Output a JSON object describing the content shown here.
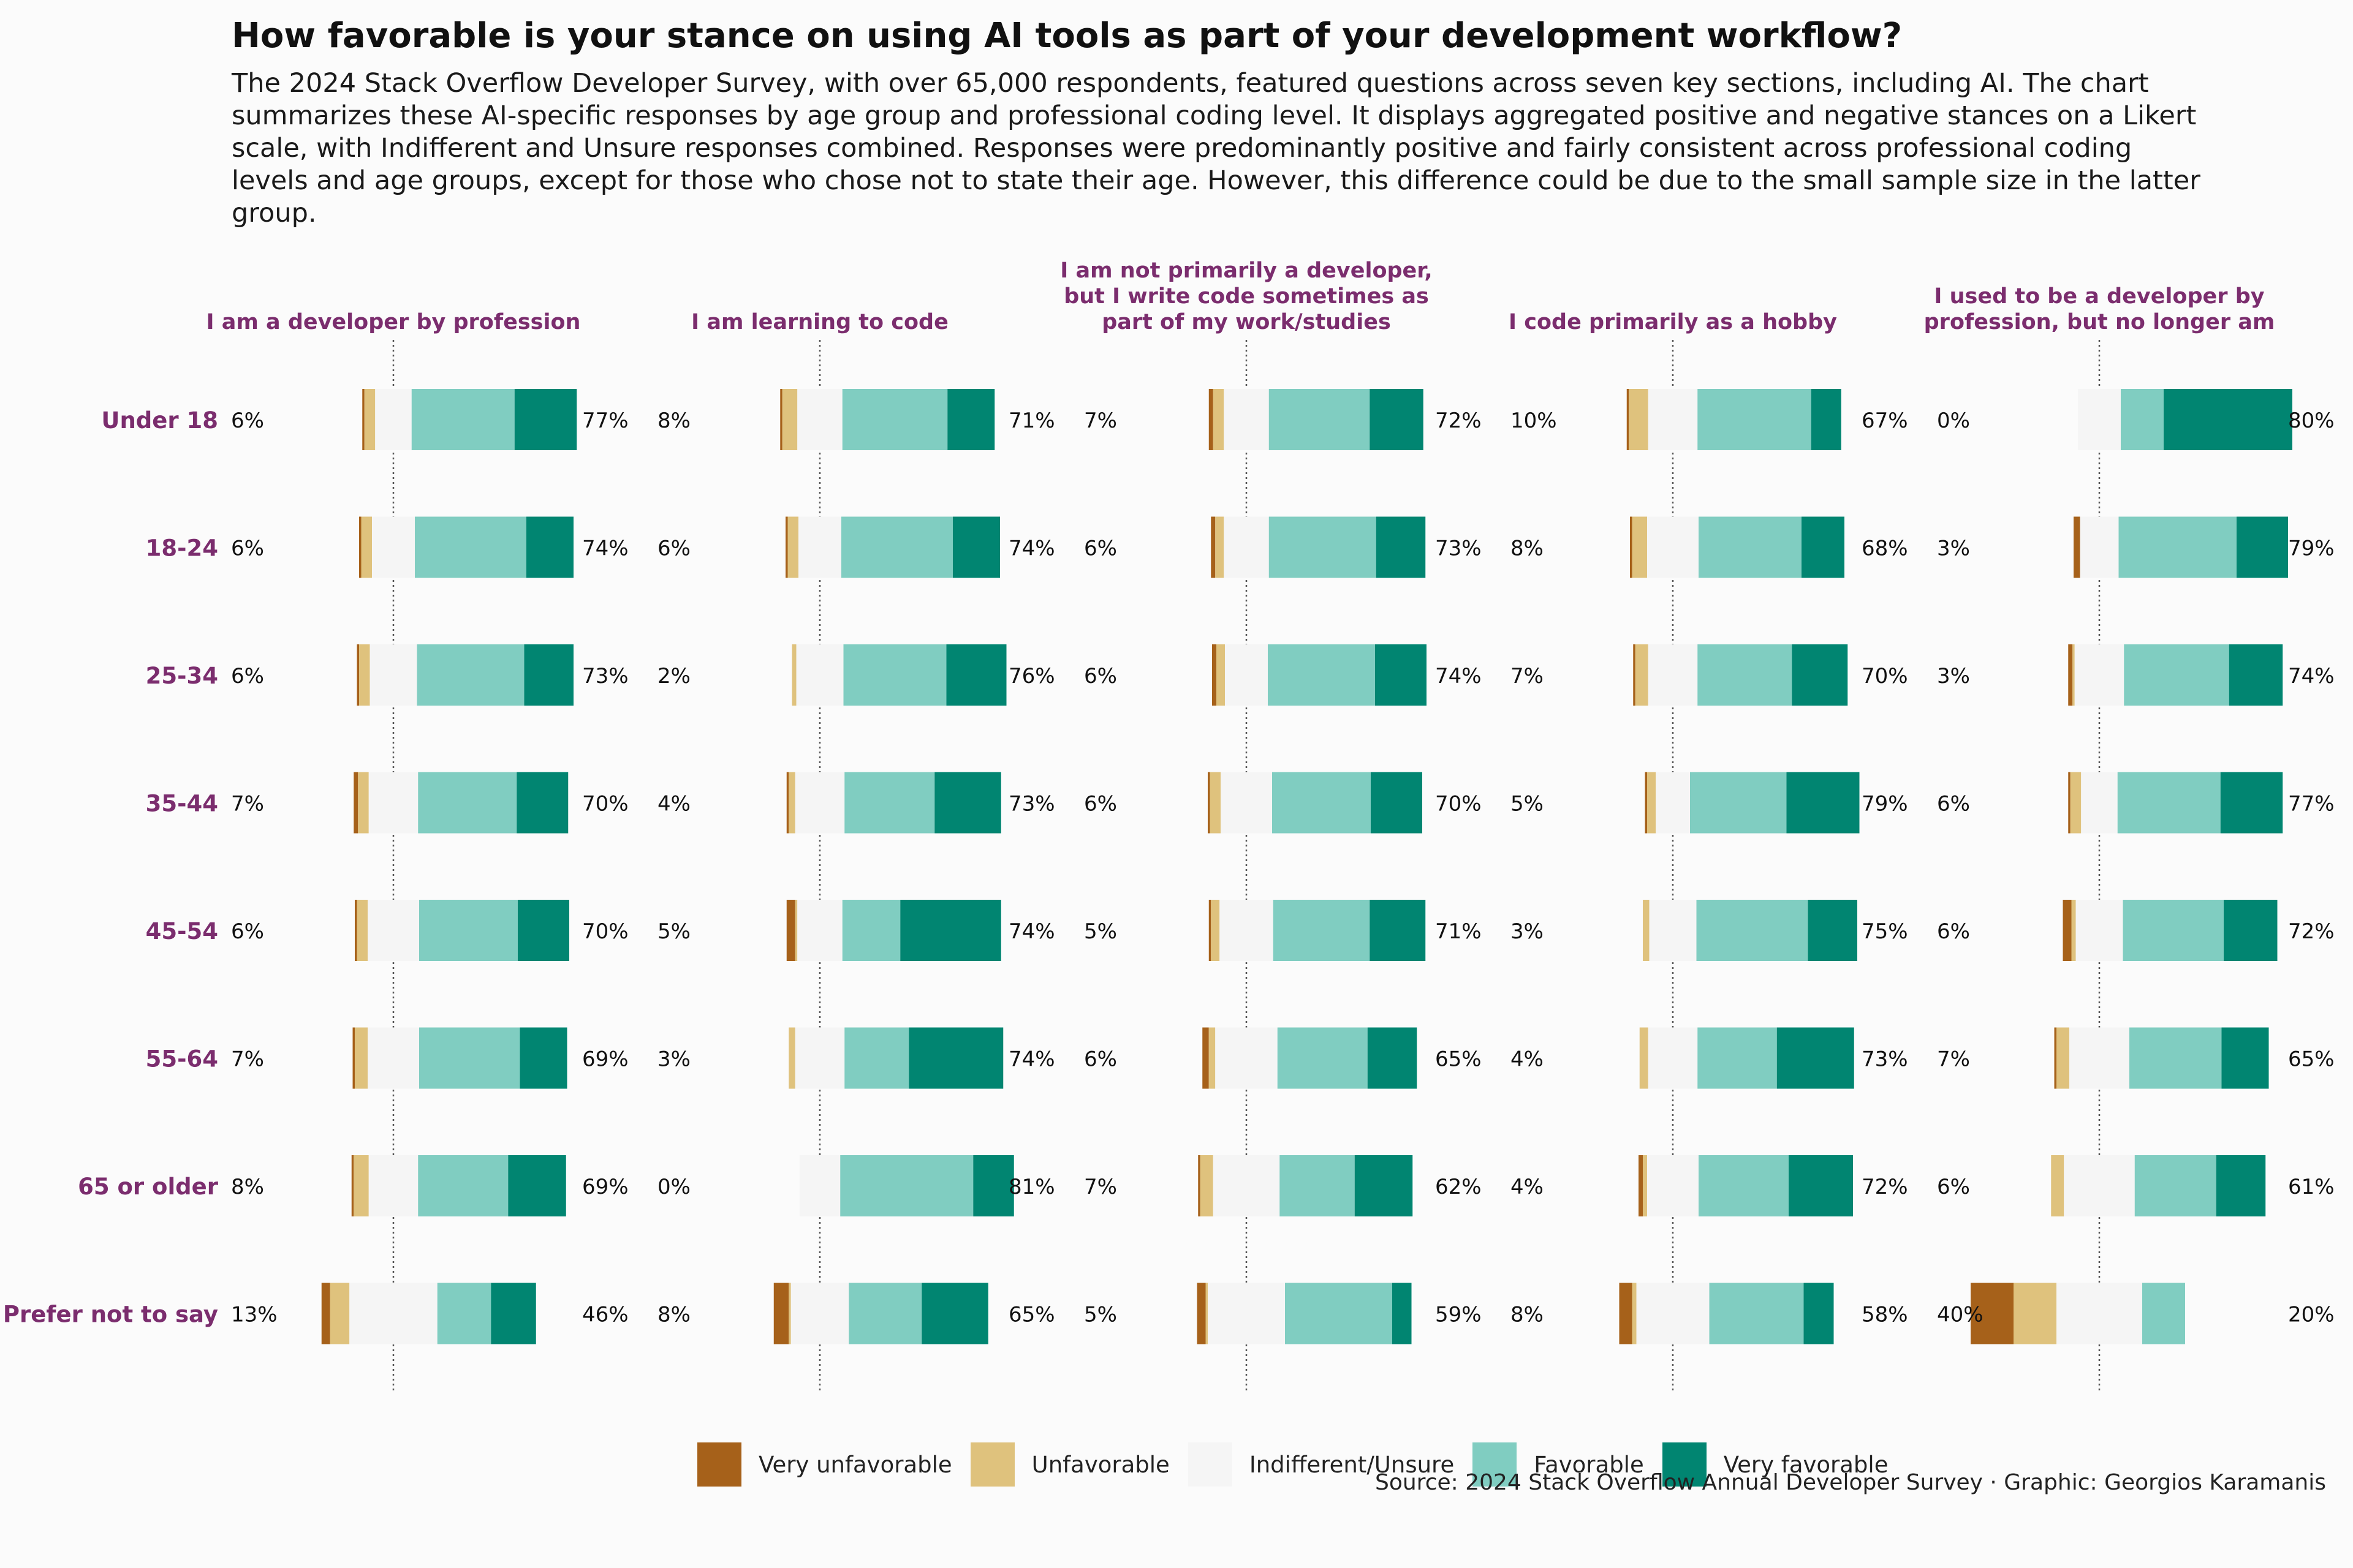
{
  "title": "How favorable is your stance on using AI tools as part of your development workflow?",
  "subtitle": "The 2024 Stack Overflow Developer Survey, with over 65,000 respondents, featured questions across seven key sections, including AI. The chart summarizes these AI-specific responses by age group and professional coding level. It displays aggregated positive and negative stances on a Likert scale, with Indifferent and Unsure responses combined. Responses were predominantly positive and fairly consistent across professional coding levels and age groups, except for those who chose not to state their age. However, this difference could be due to the small sample size in the latter group.",
  "source": "Source: 2024 Stack Overflow Annual Developer Survey · Graphic: Georgios Karamanis",
  "colors": {
    "very_unfavorable": "#a6611a",
    "unfavorable": "#dfc27d",
    "indifferent": "#f5f5f5",
    "favorable": "#80cdc1",
    "very_favorable": "#018571",
    "accent_label": "#7b2d6e"
  },
  "legend": [
    {
      "label": "Very unfavorable",
      "color": "#a6611a"
    },
    {
      "label": "Unfavorable",
      "color": "#dfc27d"
    },
    {
      "label": "Indifferent/Unsure",
      "color": "#f5f5f5"
    },
    {
      "label": "Favorable",
      "color": "#80cdc1"
    },
    {
      "label": "Very favorable",
      "color": "#018571"
    }
  ],
  "chart_data": {
    "type": "bar",
    "subtype": "diverging-stacked-likert",
    "rows": [
      "Under 18",
      "18-24",
      "25-34",
      "35-44",
      "45-54",
      "55-64",
      "65 or older",
      "Prefer not to say"
    ],
    "categories": [
      "Very unfavorable",
      "Unfavorable",
      "Indifferent/Unsure",
      "Favorable",
      "Very favorable"
    ],
    "panels": [
      {
        "title": [
          "I am a developer by profession"
        ],
        "negative_labels": [
          "6%",
          "6%",
          "6%",
          "7%",
          "6%",
          "7%",
          "8%",
          "13%"
        ],
        "positive_labels": [
          "77%",
          "74%",
          "73%",
          "70%",
          "70%",
          "69%",
          "69%",
          "46%"
        ],
        "values": [
          [
            1,
            5,
            17,
            48,
            29
          ],
          [
            1,
            5,
            20,
            52,
            22
          ],
          [
            1,
            5,
            22,
            50,
            23
          ],
          [
            2,
            5,
            23,
            46,
            24
          ],
          [
            1,
            5,
            24,
            46,
            24
          ],
          [
            1,
            6,
            24,
            47,
            22
          ],
          [
            1,
            7,
            23,
            42,
            27
          ],
          [
            4,
            9,
            41,
            25,
            21
          ]
        ]
      },
      {
        "title": [
          "I am learning to code"
        ],
        "negative_labels": [
          "8%",
          "6%",
          "2%",
          "4%",
          "5%",
          "3%",
          "0%",
          "8%"
        ],
        "positive_labels": [
          "71%",
          "74%",
          "76%",
          "73%",
          "74%",
          "74%",
          "81%",
          "65%"
        ],
        "values": [
          [
            1,
            7,
            21,
            49,
            22
          ],
          [
            1,
            5,
            20,
            52,
            22
          ],
          [
            0,
            2,
            22,
            48,
            28
          ],
          [
            1,
            3,
            23,
            42,
            31
          ],
          [
            4,
            1,
            21,
            27,
            47
          ],
          [
            0,
            3,
            23,
            30,
            44
          ],
          [
            0,
            0,
            19,
            62,
            19
          ],
          [
            7,
            1,
            27,
            34,
            31
          ]
        ]
      },
      {
        "title": [
          "I am not primarily a developer,",
          "but I write code sometimes as",
          "part of my work/studies"
        ],
        "negative_labels": [
          "7%",
          "6%",
          "6%",
          "6%",
          "5%",
          "6%",
          "7%",
          "5%"
        ],
        "positive_labels": [
          "72%",
          "73%",
          "74%",
          "70%",
          "71%",
          "65%",
          "62%",
          "59%"
        ],
        "values": [
          [
            2,
            5,
            21,
            47,
            25
          ],
          [
            2,
            4,
            21,
            50,
            23
          ],
          [
            2,
            4,
            20,
            50,
            24
          ],
          [
            1,
            5,
            24,
            46,
            24
          ],
          [
            1,
            4,
            25,
            45,
            26
          ],
          [
            3,
            3,
            29,
            42,
            23
          ],
          [
            1,
            6,
            31,
            35,
            27
          ],
          [
            4,
            1,
            36,
            50,
            9
          ]
        ]
      },
      {
        "title": [
          "I code primarily as a hobby"
        ],
        "negative_labels": [
          "10%",
          "8%",
          "7%",
          "5%",
          "3%",
          "4%",
          "4%",
          "8%"
        ],
        "positive_labels": [
          "67%",
          "68%",
          "70%",
          "79%",
          "75%",
          "73%",
          "72%",
          "58%"
        ],
        "values": [
          [
            1,
            9,
            23,
            53,
            14
          ],
          [
            1,
            7,
            24,
            48,
            20
          ],
          [
            1,
            6,
            23,
            44,
            26
          ],
          [
            1,
            4,
            16,
            45,
            34
          ],
          [
            0,
            3,
            22,
            52,
            23
          ],
          [
            0,
            4,
            23,
            37,
            36
          ],
          [
            2,
            2,
            24,
            42,
            30
          ],
          [
            6,
            2,
            34,
            44,
            14
          ]
        ]
      },
      {
        "title": [
          "I used to be a developer by",
          "profession, but no longer am"
        ],
        "negative_labels": [
          "0%",
          "3%",
          "3%",
          "6%",
          "6%",
          "7%",
          "6%",
          "40%"
        ],
        "positive_labels": [
          "80%",
          "79%",
          "74%",
          "77%",
          "72%",
          "65%",
          "61%",
          "20%"
        ],
        "values": [
          [
            0,
            0,
            20,
            20,
            60
          ],
          [
            3,
            0,
            18,
            55,
            24
          ],
          [
            2,
            1,
            23,
            49,
            25
          ],
          [
            1,
            5,
            17,
            48,
            29
          ],
          [
            4,
            2,
            22,
            47,
            25
          ],
          [
            1,
            6,
            28,
            43,
            22
          ],
          [
            0,
            6,
            33,
            38,
            23
          ],
          [
            20,
            20,
            40,
            20,
            0
          ]
        ]
      }
    ]
  }
}
